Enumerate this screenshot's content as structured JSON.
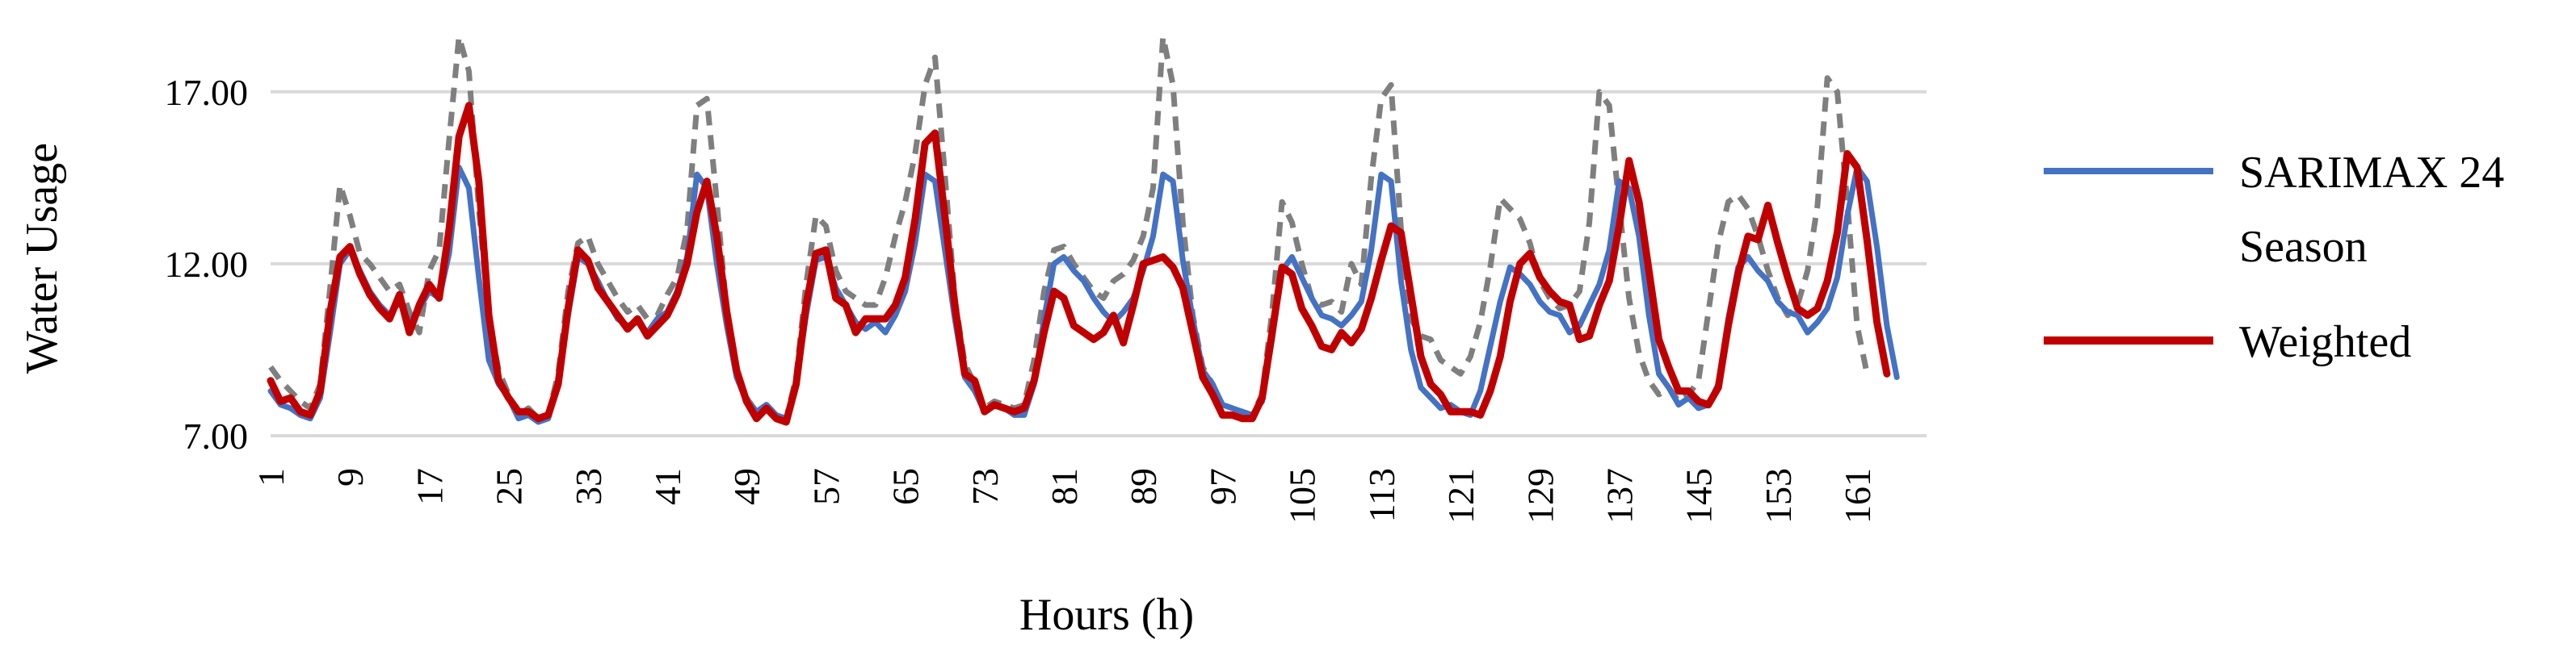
{
  "chart_data": {
    "type": "line",
    "title": "",
    "xlabel": "Hours (h)",
    "ylabel": "Water Usage",
    "ylim": [
      7,
      19.2
    ],
    "xlim": [
      1,
      168
    ],
    "yticks": [
      "7.00",
      "12.00",
      "17.00"
    ],
    "ytick_values": [
      7,
      12,
      17
    ],
    "xticks": [
      "1",
      "9",
      "17",
      "25",
      "33",
      "41",
      "49",
      "57",
      "65",
      "73",
      "81",
      "89",
      "97",
      "105",
      "113",
      "121",
      "129",
      "137",
      "145",
      "153",
      "161"
    ],
    "grid": true,
    "legend_position": "right",
    "colors": {
      "sarimax": "#4472C4",
      "weighted": "#C00000",
      "actual": "#7F7F7F",
      "grid": "#D9D9D9"
    },
    "series": [
      {
        "name": "SARIMAX 24 Season",
        "legend_lines": [
          "SARIMAX 24",
          "Season"
        ],
        "style": "solid",
        "values": [
          8.3,
          7.9,
          7.8,
          7.6,
          7.5,
          8.1,
          10.0,
          12.0,
          12.4,
          11.8,
          11.2,
          10.8,
          10.5,
          10.9,
          10.3,
          10.7,
          11.2,
          11.0,
          12.3,
          14.8,
          14.2,
          11.6,
          9.2,
          8.5,
          8.1,
          7.5,
          7.6,
          7.4,
          7.5,
          8.6,
          10.5,
          12.2,
          12.0,
          11.5,
          10.9,
          10.4,
          10.2,
          10.3,
          10.0,
          10.4,
          10.6,
          11.2,
          12.2,
          14.6,
          14.2,
          12.0,
          10.2,
          8.7,
          8.0,
          7.7,
          7.9,
          7.6,
          7.5,
          8.5,
          10.5,
          12.1,
          12.2,
          11.3,
          10.8,
          10.3,
          10.1,
          10.3,
          10.0,
          10.5,
          11.2,
          12.6,
          14.6,
          14.4,
          12.4,
          10.4,
          8.7,
          8.3,
          7.7,
          7.9,
          7.8,
          7.6,
          7.6,
          8.5,
          10.4,
          12.0,
          12.2,
          11.8,
          11.5,
          11.0,
          10.6,
          10.3,
          10.6,
          11.0,
          11.8,
          12.8,
          14.6,
          14.4,
          12.1,
          10.4,
          8.9,
          8.5,
          7.9,
          7.8,
          7.7,
          7.6,
          8.0,
          9.8,
          11.8,
          12.2,
          11.6,
          11.0,
          10.5,
          10.4,
          10.2,
          10.5,
          10.9,
          12.4,
          14.6,
          14.4,
          11.5,
          9.5,
          8.4,
          8.1,
          7.8,
          7.9,
          7.7,
          7.6,
          8.3,
          9.6,
          10.9,
          11.9,
          11.7,
          11.4,
          10.9,
          10.6,
          10.5,
          10.0,
          10.2,
          10.8,
          11.4,
          12.4,
          14.4,
          14.2,
          12.8,
          10.5,
          8.8,
          8.4,
          7.9,
          8.1,
          7.8,
          7.9,
          8.5,
          10.4,
          11.9,
          12.2,
          11.8,
          11.5,
          10.9,
          10.6,
          10.5,
          10.0,
          10.3,
          10.7,
          11.6,
          13.4,
          14.8,
          14.4,
          12.5,
          10.2,
          8.7
        ]
      },
      {
        "name": "Weighted",
        "legend_lines": [
          "Weighted"
        ],
        "style": "solid",
        "values": [
          8.6,
          8.0,
          8.1,
          7.7,
          7.6,
          8.3,
          10.6,
          12.2,
          12.5,
          11.7,
          11.1,
          10.7,
          10.4,
          11.1,
          10.0,
          10.8,
          11.4,
          11.0,
          13.0,
          15.7,
          16.6,
          14.4,
          10.5,
          8.6,
          8.1,
          7.7,
          7.7,
          7.5,
          7.6,
          8.5,
          10.7,
          12.4,
          12.1,
          11.3,
          10.9,
          10.5,
          10.1,
          10.4,
          9.9,
          10.2,
          10.5,
          11.1,
          12.0,
          13.5,
          14.4,
          12.8,
          10.6,
          8.9,
          8.0,
          7.5,
          7.8,
          7.5,
          7.4,
          8.5,
          10.8,
          12.3,
          12.4,
          11.0,
          10.8,
          10.0,
          10.4,
          10.4,
          10.4,
          10.8,
          11.6,
          13.3,
          15.5,
          15.8,
          13.4,
          10.8,
          8.8,
          8.6,
          7.7,
          7.9,
          7.8,
          7.7,
          7.8,
          8.6,
          10.0,
          11.2,
          11.0,
          10.2,
          10.0,
          9.8,
          10.0,
          10.5,
          9.7,
          10.8,
          12.0,
          12.1,
          12.2,
          11.9,
          11.3,
          10.0,
          8.7,
          8.2,
          7.6,
          7.6,
          7.5,
          7.5,
          8.1,
          10.0,
          11.9,
          11.7,
          10.7,
          10.2,
          9.6,
          9.5,
          10.0,
          9.7,
          10.1,
          11.0,
          12.1,
          13.1,
          12.9,
          11.1,
          9.3,
          8.5,
          8.2,
          7.7,
          7.7,
          7.7,
          7.6,
          8.3,
          9.3,
          10.9,
          12.0,
          12.3,
          11.6,
          11.2,
          10.9,
          10.8,
          9.8,
          9.9,
          10.8,
          11.5,
          13.1,
          15.0,
          13.8,
          11.8,
          9.8,
          9.0,
          8.3,
          8.3,
          8.0,
          7.9,
          8.4,
          10.2,
          11.7,
          12.8,
          12.7,
          13.7,
          12.6,
          11.6,
          10.7,
          10.5,
          10.7,
          11.5,
          12.9,
          15.2,
          14.8,
          12.7,
          10.3,
          8.8
        ]
      },
      {
        "name": "",
        "legend_lines": [],
        "style": "dashed",
        "values": [
          9.0,
          8.6,
          8.3,
          8.0,
          7.8,
          8.5,
          11.3,
          14.3,
          13.4,
          12.3,
          12.0,
          11.6,
          11.2,
          11.4,
          10.6,
          10.0,
          11.8,
          12.4,
          15.6,
          18.6,
          17.6,
          13.6,
          10.4,
          8.9,
          8.2,
          7.6,
          7.8,
          7.5,
          7.6,
          8.8,
          11.2,
          12.6,
          12.8,
          12.0,
          11.5,
          11.0,
          10.6,
          10.8,
          10.4,
          10.5,
          11.1,
          11.6,
          13.0,
          16.6,
          16.8,
          13.8,
          10.6,
          8.9,
          8.1,
          7.7,
          7.9,
          7.6,
          7.5,
          8.7,
          11.4,
          13.4,
          13.1,
          11.8,
          11.2,
          11.0,
          10.8,
          10.8,
          11.6,
          12.8,
          13.8,
          15.2,
          17.2,
          18.0,
          14.6,
          11.0,
          9.1,
          8.5,
          7.8,
          8.0,
          7.9,
          7.8,
          7.9,
          9.2,
          11.2,
          12.4,
          12.5,
          12.0,
          11.6,
          11.2,
          11.0,
          11.5,
          11.7,
          12.1,
          12.8,
          14.2,
          18.6,
          17.2,
          13.2,
          10.5,
          9.0,
          8.5,
          7.9,
          7.8,
          7.7,
          7.6,
          8.2,
          10.6,
          13.8,
          13.2,
          12.0,
          11.0,
          10.8,
          10.9,
          10.6,
          12.0,
          11.4,
          14.5,
          16.8,
          17.2,
          13.0,
          10.4,
          9.9,
          9.8,
          9.2,
          9.0,
          8.8,
          9.3,
          10.3,
          11.9,
          13.9,
          13.6,
          13.3,
          12.6,
          11.5,
          11.0,
          10.7,
          10.8,
          11.2,
          13.2,
          17.0,
          16.6,
          13.7,
          11.0,
          9.4,
          8.6,
          8.2,
          8.4,
          8.0,
          8.2,
          8.6,
          10.6,
          12.6,
          13.8,
          14.0,
          13.6,
          12.8,
          11.8,
          11.0,
          10.5,
          10.8,
          11.8,
          13.7,
          17.4,
          17.0,
          13.8,
          10.2,
          8.8
        ]
      }
    ]
  }
}
